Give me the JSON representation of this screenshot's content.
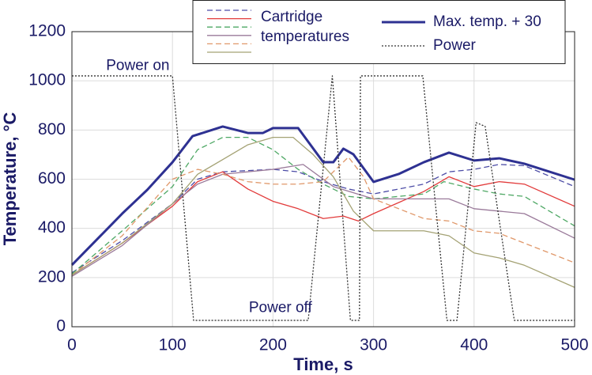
{
  "chart_data": {
    "type": "line",
    "xlabel": "Time, s",
    "ylabel": "Temperature, °C",
    "xlim": [
      0,
      500
    ],
    "ylim": [
      0,
      1200
    ],
    "xticks": [
      0,
      100,
      200,
      300,
      400,
      500
    ],
    "yticks": [
      0,
      200,
      400,
      600,
      800,
      1000,
      1200
    ],
    "grid": true,
    "cartridge_label": [
      "Cartridge",
      "temperatures"
    ],
    "annotations": [
      {
        "text": "Power on",
        "x": 34,
        "y": 1060
      },
      {
        "text": "Power off",
        "x": 176,
        "y": 75
      }
    ],
    "series": [
      {
        "color": "#4c4ca6",
        "dash": "dashed",
        "x": [
          0,
          50,
          100,
          125,
          150,
          200,
          225,
          250,
          275,
          300,
          350,
          375,
          400,
          425,
          450,
          500
        ],
        "values": [
          220,
          350,
          500,
          600,
          630,
          640,
          630,
          590,
          560,
          540,
          580,
          630,
          640,
          660,
          655,
          570
        ]
      },
      {
        "color": "#e23b3b",
        "dash": "solid",
        "x": [
          0,
          50,
          100,
          125,
          150,
          175,
          200,
          225,
          250,
          270,
          285,
          300,
          350,
          375,
          400,
          425,
          450,
          500
        ],
        "values": [
          210,
          340,
          490,
          590,
          630,
          560,
          510,
          480,
          440,
          450,
          430,
          460,
          550,
          610,
          570,
          590,
          580,
          490
        ]
      },
      {
        "color": "#4fa865",
        "dash": "dashed",
        "x": [
          0,
          50,
          100,
          125,
          150,
          175,
          200,
          225,
          250,
          275,
          300,
          350,
          370,
          400,
          425,
          450,
          500
        ],
        "values": [
          215,
          390,
          570,
          720,
          770,
          770,
          720,
          640,
          580,
          530,
          520,
          540,
          590,
          560,
          540,
          530,
          410
        ]
      },
      {
        "color": "#9a7a9a",
        "dash": "solid",
        "x": [
          0,
          50,
          100,
          125,
          150,
          200,
          230,
          260,
          300,
          350,
          375,
          400,
          450,
          500
        ],
        "values": [
          205,
          330,
          500,
          580,
          620,
          640,
          660,
          570,
          520,
          520,
          520,
          480,
          460,
          360
        ]
      },
      {
        "color": "#e0986a",
        "dash": "dashed",
        "x": [
          0,
          50,
          100,
          125,
          150,
          175,
          200,
          225,
          250,
          275,
          290,
          300,
          350,
          375,
          400,
          425,
          450,
          500
        ],
        "values": [
          210,
          370,
          600,
          640,
          620,
          590,
          580,
          580,
          590,
          690,
          610,
          520,
          440,
          430,
          390,
          380,
          340,
          260
        ]
      },
      {
        "color": "#a4a274",
        "dash": "solid",
        "x": [
          0,
          50,
          100,
          125,
          150,
          175,
          200,
          220,
          240,
          260,
          280,
          300,
          350,
          375,
          400,
          425,
          450,
          500
        ],
        "values": [
          210,
          340,
          500,
          620,
          680,
          740,
          770,
          770,
          700,
          610,
          470,
          390,
          390,
          370,
          300,
          280,
          250,
          160
        ]
      },
      {
        "name": "Max. temp. + 30",
        "color": "#2e3192",
        "dash": "solid",
        "width": 3,
        "x": [
          0,
          50,
          75,
          100,
          120,
          150,
          175,
          190,
          200,
          225,
          250,
          260,
          270,
          280,
          300,
          325,
          350,
          375,
          400,
          425,
          450,
          500
        ],
        "values": [
          251,
          460,
          557,
          669,
          775,
          814,
          788,
          788,
          808,
          808,
          669,
          669,
          724,
          701,
          589,
          621,
          669,
          708,
          676,
          685,
          663,
          598
        ]
      },
      {
        "name": "Power",
        "color": "#333333",
        "dash": "dotted",
        "x": [
          0,
          100,
          121,
          235,
          259,
          277,
          286,
          287,
          349,
          373,
          383,
          402,
          411,
          440,
          500
        ],
        "values": [
          1020,
          1020,
          26,
          26,
          1020,
          26,
          26,
          1020,
          1020,
          26,
          26,
          830,
          815,
          26,
          26
        ]
      }
    ]
  }
}
